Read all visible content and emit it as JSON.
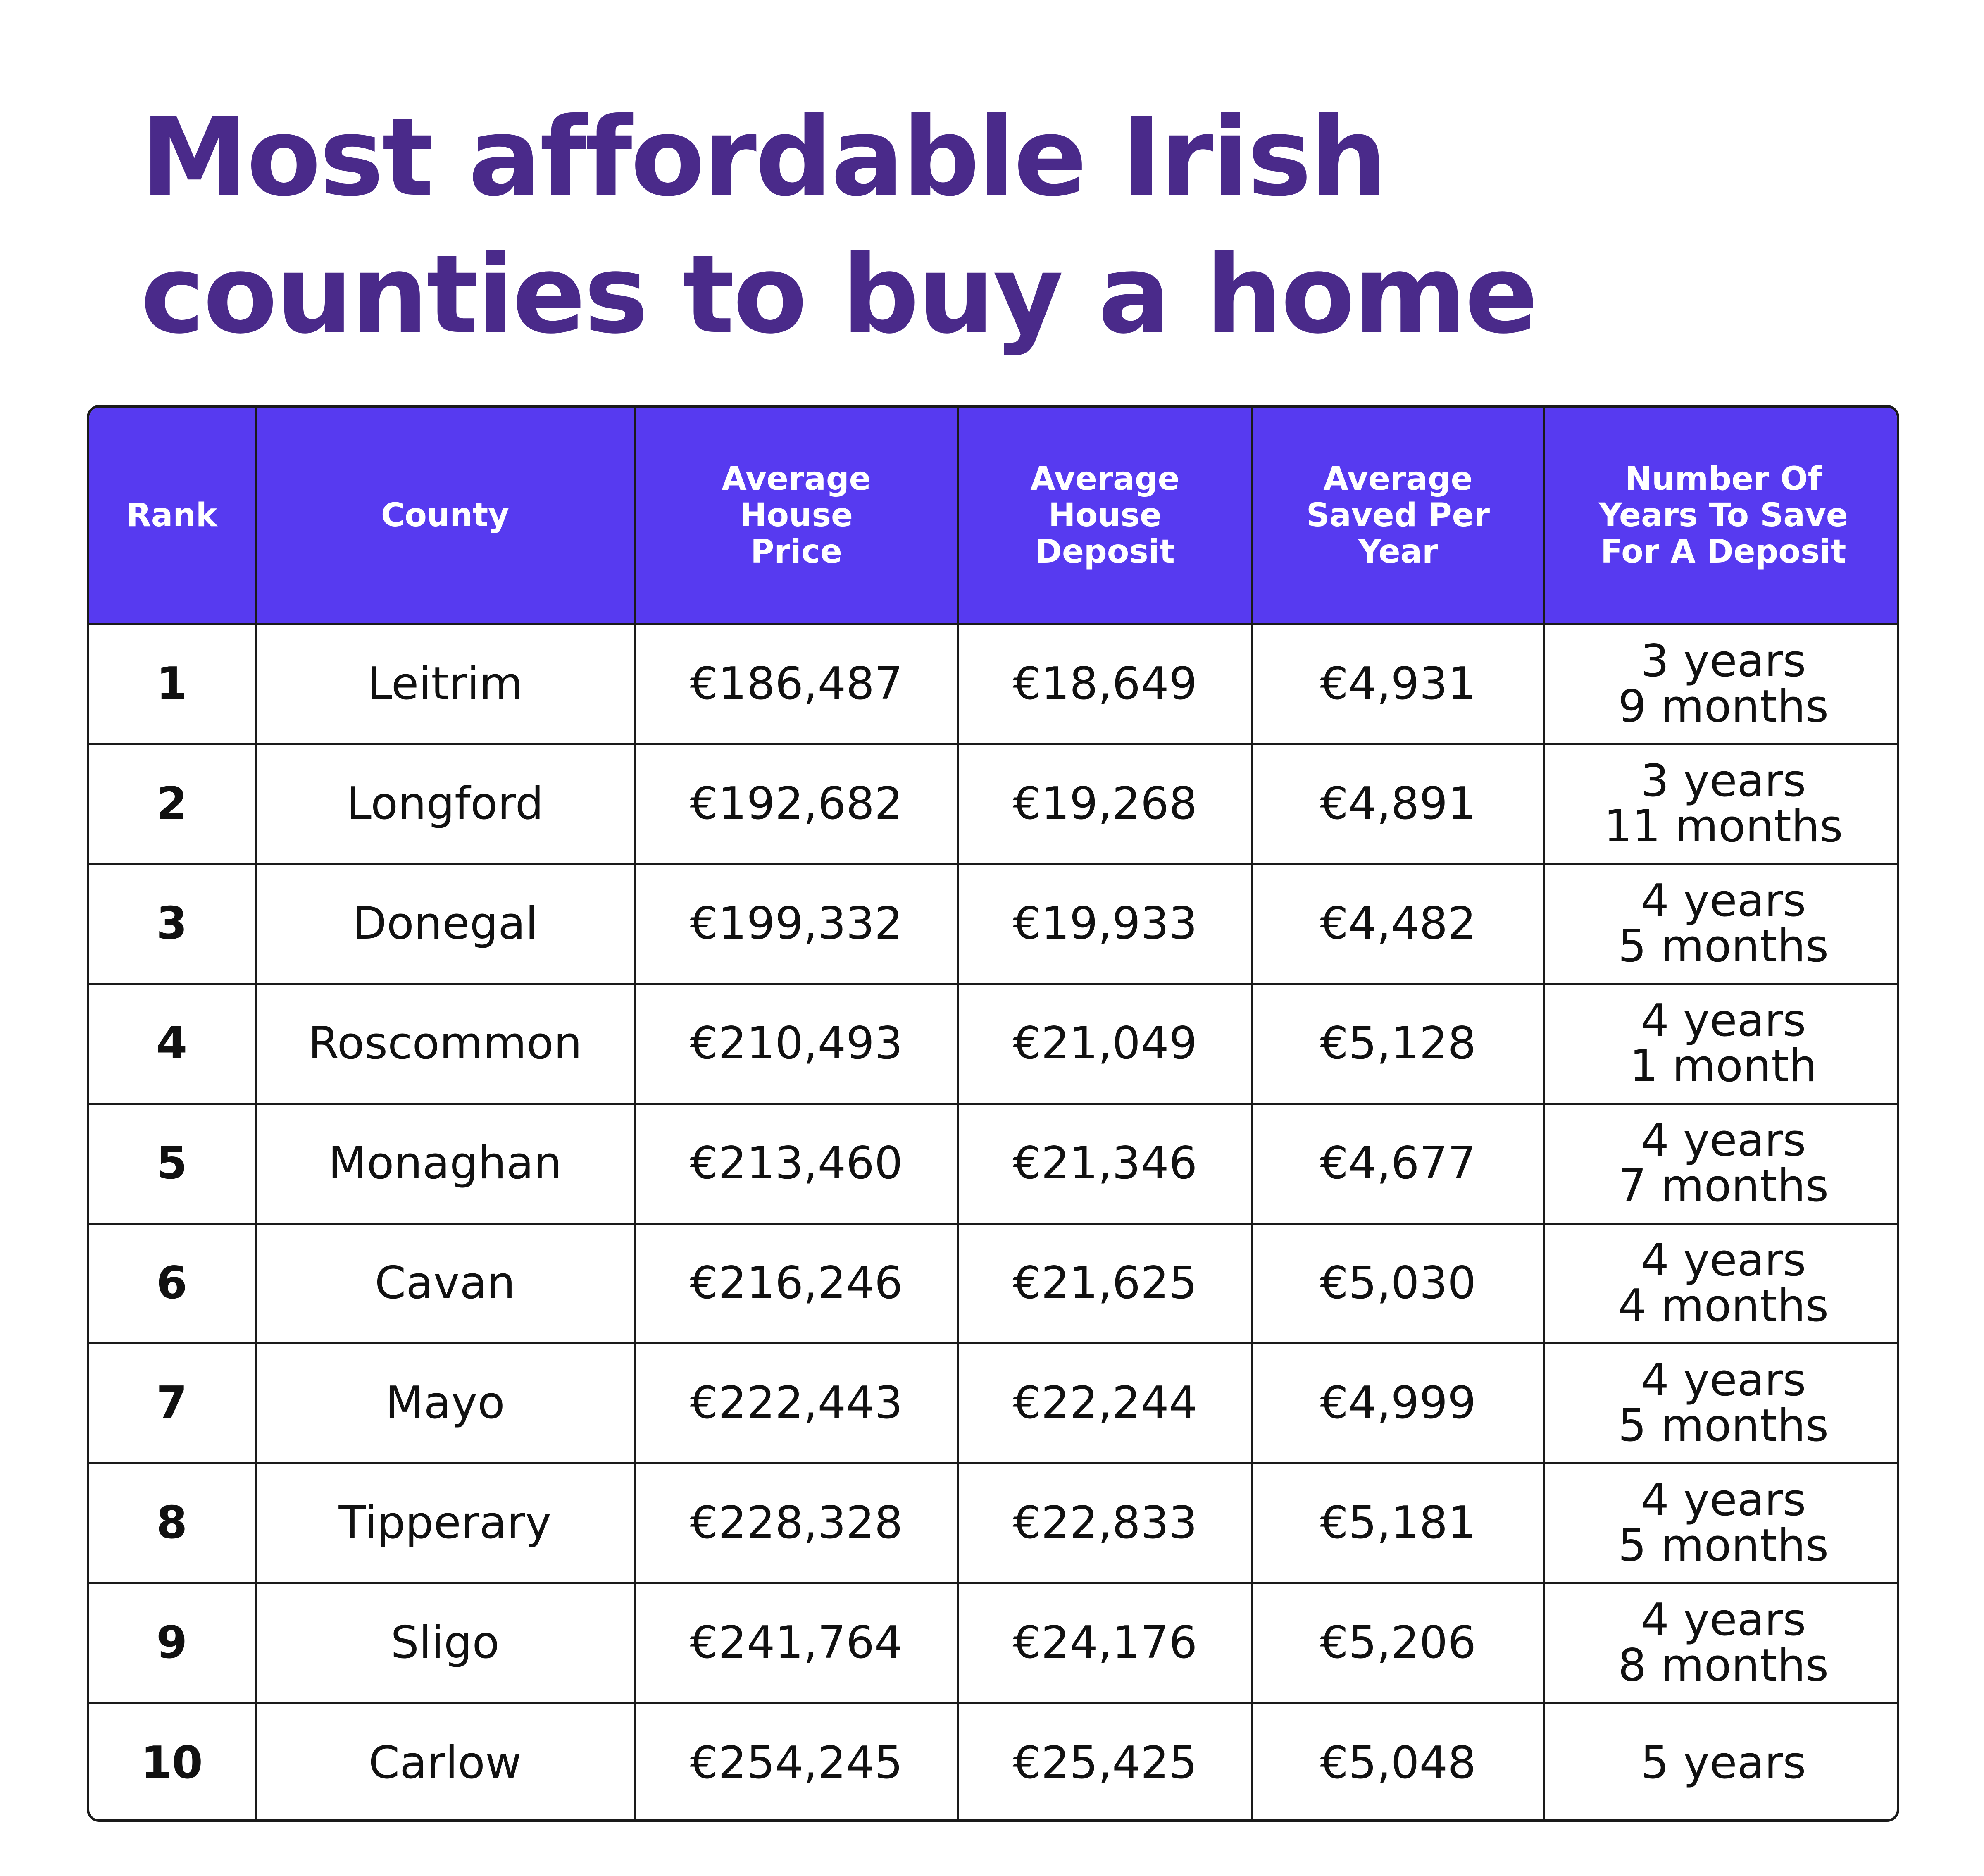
{
  "title": {
    "line1": "Most affordable Irish",
    "line2": "counties to buy a home"
  },
  "colors": {
    "title": "#4a2a8a",
    "header_bg": "#573af0",
    "header_text": "#ffffff",
    "border": "#1a1a1a"
  },
  "table": {
    "headers": [
      "Rank",
      "County",
      "Average House Price",
      "Average House Deposit",
      "Average Saved Per Year",
      "Number Of Years To Save For A Deposit"
    ],
    "rows": [
      {
        "rank": "1",
        "county": "Leitrim",
        "price": "€186,487",
        "deposit": "€18,649",
        "saved": "€4,931",
        "years": "3 years",
        "months": "9 months"
      },
      {
        "rank": "2",
        "county": "Longford",
        "price": "€192,682",
        "deposit": "€19,268",
        "saved": "€4,891",
        "years": "3 years",
        "months": "11 months"
      },
      {
        "rank": "3",
        "county": "Donegal",
        "price": "€199,332",
        "deposit": "€19,933",
        "saved": "€4,482",
        "years": "4 years",
        "months": "5 months"
      },
      {
        "rank": "4",
        "county": "Roscommon",
        "price": "€210,493",
        "deposit": "€21,049",
        "saved": "€5,128",
        "years": "4 years",
        "months": "1 month"
      },
      {
        "rank": "5",
        "county": "Monaghan",
        "price": "€213,460",
        "deposit": "€21,346",
        "saved": "€4,677",
        "years": "4 years",
        "months": "7 months"
      },
      {
        "rank": "6",
        "county": "Cavan",
        "price": "€216,246",
        "deposit": "€21,625",
        "saved": "€5,030",
        "years": "4 years",
        "months": "4 months"
      },
      {
        "rank": "7",
        "county": "Mayo",
        "price": "€222,443",
        "deposit": "€22,244",
        "saved": "€4,999",
        "years": "4 years",
        "months": "5 months"
      },
      {
        "rank": "8",
        "county": "Tipperary",
        "price": "€228,328",
        "deposit": "€22,833",
        "saved": "€5,181",
        "years": "4 years",
        "months": "5 months"
      },
      {
        "rank": "9",
        "county": "Sligo",
        "price": "€241,764",
        "deposit": "€24,176",
        "saved": "€5,206",
        "years": "4 years",
        "months": "8 months"
      },
      {
        "rank": "10",
        "county": "Carlow",
        "price": "€254,245",
        "deposit": "€25,425",
        "saved": "€5,048",
        "years": "5 years",
        "months": ""
      }
    ]
  }
}
